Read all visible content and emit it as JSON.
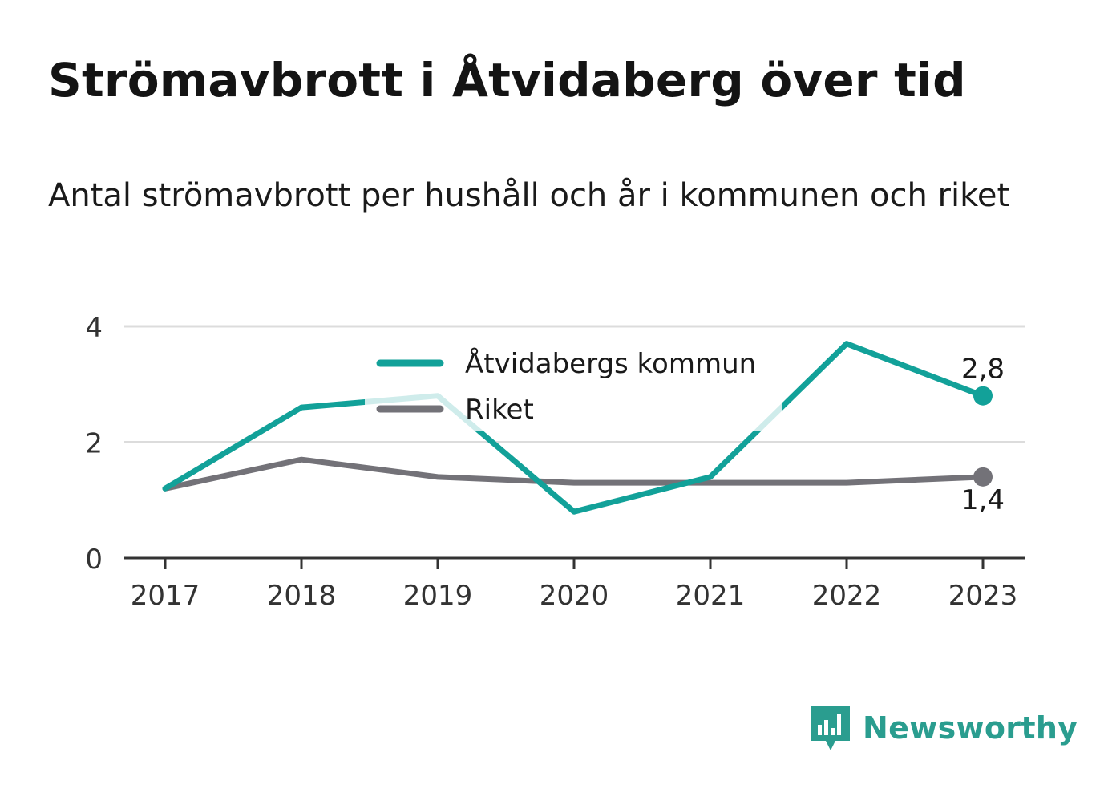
{
  "title": "Strömavbrott i Åtvidaberg över tid",
  "subtitle": "Antal strömavbrott per hushåll och år i kommunen och riket",
  "brand": {
    "name": "Newsworthy",
    "icon": "bar-chart-bubble-icon",
    "color": "#2a9d8f"
  },
  "chart_data": {
    "type": "line",
    "x": [
      "2017",
      "2018",
      "2019",
      "2020",
      "2021",
      "2022",
      "2023"
    ],
    "ylim": [
      0,
      4
    ],
    "yticks": [
      "0",
      "2",
      "4"
    ],
    "grid": true,
    "legend_position": "top-center",
    "series": [
      {
        "name": "Åtvidabergs kommun",
        "color": "#12a199",
        "values": [
          1.2,
          2.6,
          2.8,
          0.8,
          1.4,
          3.7,
          2.8
        ],
        "end_label": "2,8"
      },
      {
        "name": "Riket",
        "color": "#737278",
        "values": [
          1.2,
          1.7,
          1.4,
          1.3,
          1.3,
          1.3,
          1.4
        ],
        "end_label": "1,4"
      }
    ]
  }
}
